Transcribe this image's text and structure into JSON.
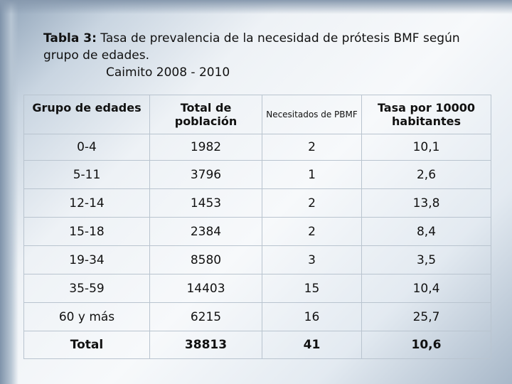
{
  "title": {
    "label": "Tabla 3:",
    "text": " Tasa de prevalencia de la necesidad de prótesis BMF según grupo de edades.",
    "subtitle": "Caimito 2008 - 2010"
  },
  "table": {
    "headers": [
      "Grupo de edades",
      "Total de población",
      "Necesitados de PBMF",
      "Tasa por 10000 habitantes"
    ],
    "rows": [
      [
        "0-4",
        "1982",
        "2",
        "10,1"
      ],
      [
        "5-11",
        "3796",
        "1",
        "2,6"
      ],
      [
        "12-14",
        "1453",
        "2",
        "13,8"
      ],
      [
        "15-18",
        "2384",
        "2",
        "8,4"
      ],
      [
        "19-34",
        "8580",
        "3",
        "3,5"
      ],
      [
        "35-59",
        "14403",
        "15",
        "10,4"
      ],
      [
        "60 y más",
        "6215",
        "16",
        "25,7"
      ]
    ],
    "total": [
      "Total",
      "38813",
      "41",
      "10,6"
    ]
  }
}
